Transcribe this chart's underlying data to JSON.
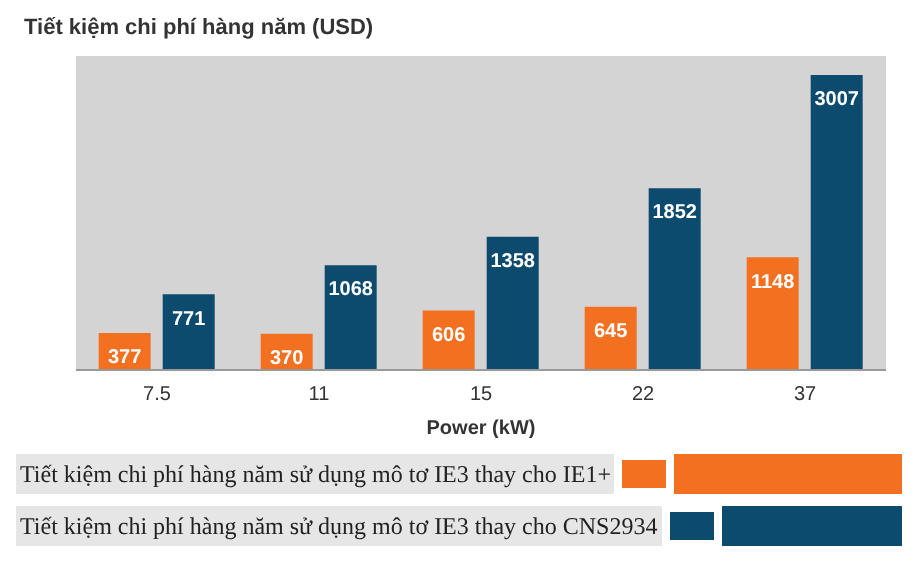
{
  "chart_data": {
    "type": "bar",
    "title": "Tiết kiệm chi phí hàng năm (USD)",
    "xlabel": "Power (kW)",
    "categories": [
      "7.5",
      "11",
      "15",
      "22",
      "37"
    ],
    "series": [
      {
        "name": "Tiết kiệm chi phí hàng năm sử dụng mô tơ IE3 thay cho IE1+",
        "color": "#f37021",
        "values": [
          377,
          370,
          606,
          645,
          1148
        ]
      },
      {
        "name": "Tiết kiệm chi phí hàng năm sử dụng mô tơ IE3 thay cho CNS2934",
        "color": "#0c4a6e",
        "values": [
          771,
          1068,
          1358,
          1852,
          3007
        ]
      }
    ],
    "tick_labels": "x",
    "legend": "bottom",
    "data_labels": true
  }
}
